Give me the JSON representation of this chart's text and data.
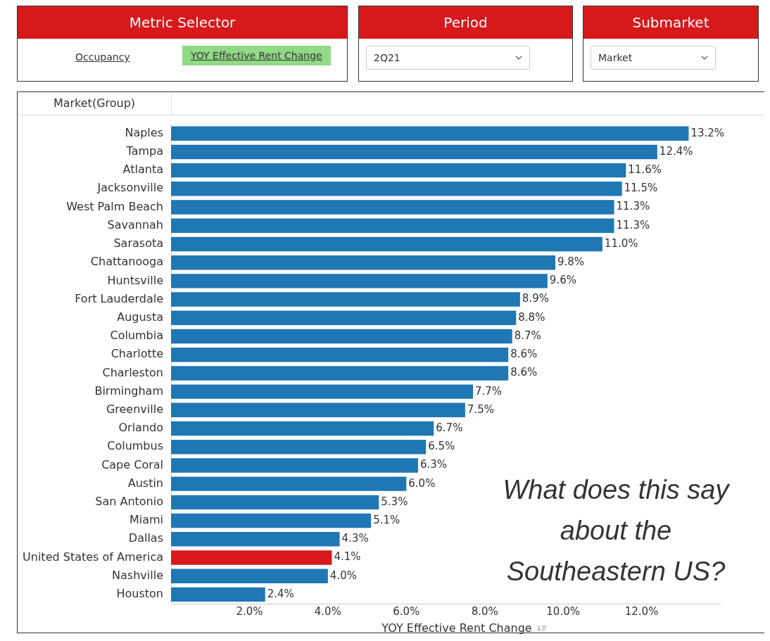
{
  "chart_data": {
    "type": "bar",
    "orientation": "horizontal",
    "xlabel": "YOY Effective Rent Change",
    "ylabel": "Market(Group)",
    "categories": [
      "Naples",
      "Tampa",
      "Atlanta",
      "Jacksonville",
      "West Palm Beach",
      "Savannah",
      "Sarasota",
      "Chattanooga",
      "Huntsville",
      "Fort Lauderdale",
      "Augusta",
      "Columbia",
      "Charlotte",
      "Charleston",
      "Birmingham",
      "Greenville",
      "Orlando",
      "Columbus",
      "Cape Coral",
      "Austin",
      "San Antonio",
      "Miami",
      "Dallas",
      "United States of America",
      "Nashville",
      "Houston"
    ],
    "values": [
      13.2,
      12.4,
      11.6,
      11.5,
      11.3,
      11.3,
      11.0,
      9.8,
      9.6,
      8.9,
      8.8,
      8.7,
      8.6,
      8.6,
      7.7,
      7.5,
      6.7,
      6.5,
      6.3,
      6.0,
      5.3,
      5.1,
      4.3,
      4.1,
      4.0,
      2.4
    ],
    "value_labels": [
      "13.2%",
      "12.4%",
      "11.6%",
      "11.5%",
      "11.3%",
      "11.3%",
      "11.0%",
      "9.8%",
      "9.6%",
      "8.9%",
      "8.8%",
      "8.7%",
      "8.6%",
      "8.6%",
      "7.7%",
      "7.5%",
      "6.7%",
      "6.5%",
      "6.3%",
      "6.0%",
      "5.3%",
      "5.1%",
      "4.3%",
      "4.1%",
      "4.0%",
      "2.4%"
    ],
    "colors": [
      "#1f77b4",
      "#1f77b4",
      "#1f77b4",
      "#1f77b4",
      "#1f77b4",
      "#1f77b4",
      "#1f77b4",
      "#1f77b4",
      "#1f77b4",
      "#1f77b4",
      "#1f77b4",
      "#1f77b4",
      "#1f77b4",
      "#1f77b4",
      "#1f77b4",
      "#1f77b4",
      "#1f77b4",
      "#1f77b4",
      "#1f77b4",
      "#1f77b4",
      "#1f77b4",
      "#1f77b4",
      "#1f77b4",
      "#d7191c",
      "#1f77b4",
      "#1f77b4"
    ],
    "xlim": [
      0,
      14
    ],
    "xticks": [
      {
        "value": 2,
        "label": "2.0%"
      },
      {
        "value": 4,
        "label": "4.0%"
      },
      {
        "value": 6,
        "label": "6.0%"
      },
      {
        "value": 8,
        "label": "8.0%"
      },
      {
        "value": 10,
        "label": "10.0%"
      },
      {
        "value": 12,
        "label": "12.0%"
      }
    ],
    "grid": false,
    "legend": false,
    "annotations": [
      "Metric Selector",
      "Occupancy",
      "YOY Effective Rent Change",
      "Period",
      "2Q21",
      "Submarket",
      "Market",
      "What does this say about the Southeastern US?"
    ]
  }
}
